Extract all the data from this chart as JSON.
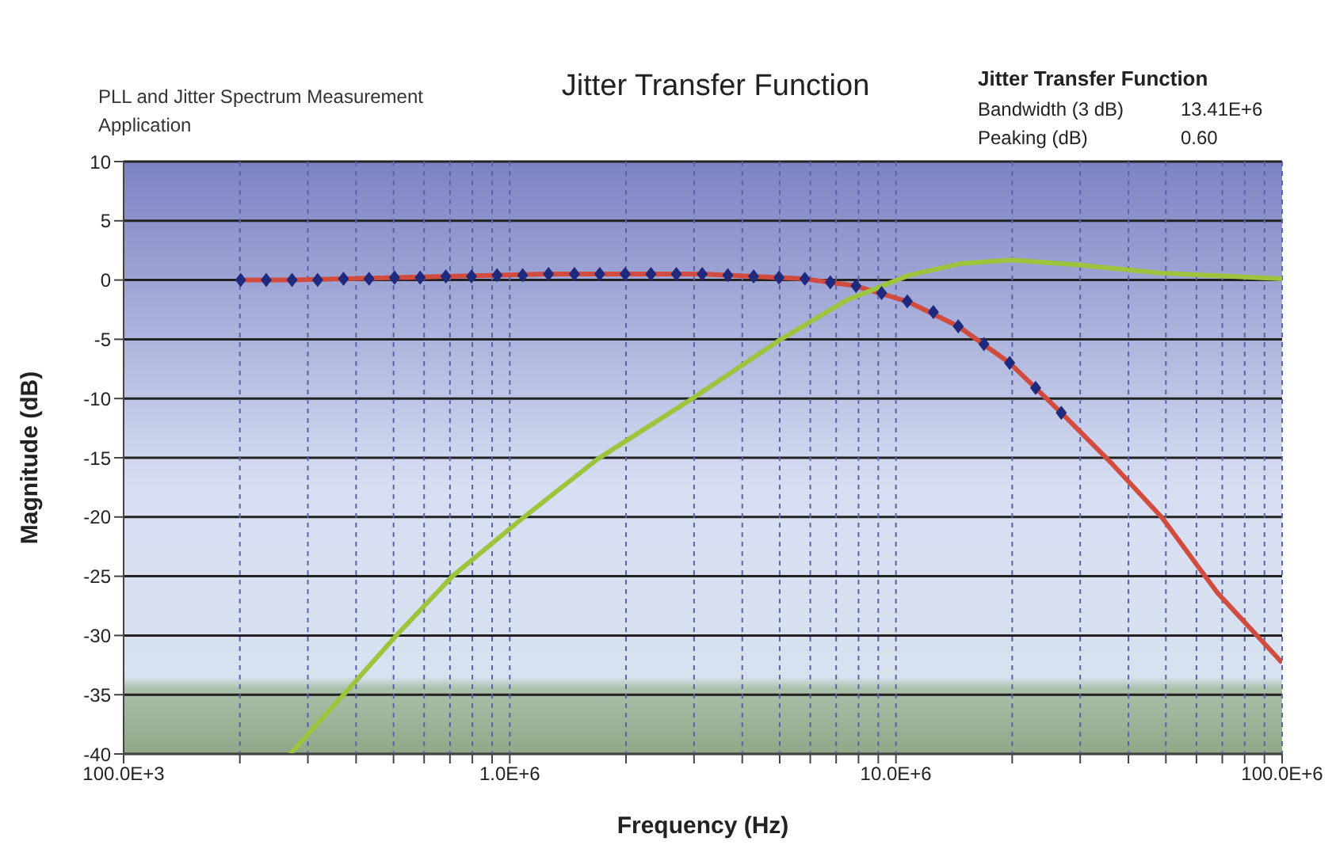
{
  "chart_data": {
    "type": "line",
    "title": "Jitter Transfer Function",
    "xlabel": "Frequency (Hz)",
    "ylabel": "Magnitude (dB)",
    "annotations": [
      "PLL and Jitter Spectrum Measurement Application",
      "Jitter Transfer Function",
      "Bandwidth (3 dB)",
      "13.41E+6",
      "Peaking (dB)",
      "0.60"
    ],
    "log": "x",
    "grid": true,
    "legend": false,
    "xlim": [
      100000,
      100000000
    ],
    "xticks": [
      {
        "value": 100000,
        "label": "100.0E+3"
      },
      {
        "value": 200000,
        "label": null
      },
      {
        "value": 300000,
        "label": null
      },
      {
        "value": 400000,
        "label": null
      },
      {
        "value": 500000,
        "label": null
      },
      {
        "value": 600000,
        "label": null
      },
      {
        "value": 700000,
        "label": null
      },
      {
        "value": 800000,
        "label": null
      },
      {
        "value": 900000,
        "label": null
      },
      {
        "value": 1000000,
        "label": "1.0E+6"
      },
      {
        "value": 2000000,
        "label": null
      },
      {
        "value": 3000000,
        "label": null
      },
      {
        "value": 4000000,
        "label": null
      },
      {
        "value": 5000000,
        "label": null
      },
      {
        "value": 6000000,
        "label": null
      },
      {
        "value": 7000000,
        "label": null
      },
      {
        "value": 8000000,
        "label": null
      },
      {
        "value": 9000000,
        "label": null
      },
      {
        "value": 10000000,
        "label": "10.0E+6"
      },
      {
        "value": 20000000,
        "label": null
      },
      {
        "value": 30000000,
        "label": null
      },
      {
        "value": 40000000,
        "label": null
      },
      {
        "value": 50000000,
        "label": null
      },
      {
        "value": 60000000,
        "label": null
      },
      {
        "value": 70000000,
        "label": null
      },
      {
        "value": 80000000,
        "label": null
      },
      {
        "value": 90000000,
        "label": null
      },
      {
        "value": 100000000,
        "label": "100.0E+6"
      }
    ],
    "ylim": [
      -40,
      10
    ],
    "yticks": [
      -40,
      -35,
      -30,
      -25,
      -20,
      -15,
      -10,
      -5,
      0,
      5,
      10
    ],
    "series": [
      {
        "color": "#d24b3f",
        "line_style": "solid",
        "marker": "none",
        "x": [
          201000,
          273000,
          371000,
          503000,
          683000,
          927000,
          1260000,
          1710000,
          2320000,
          3150000,
          4280000,
          5810000,
          7880000,
          10700000,
          14500000,
          19700000,
          26800000,
          36500000,
          49000000,
          68000000,
          100000000
        ],
        "values": [
          0,
          0,
          0.1,
          0.2,
          0.3,
          0.4,
          0.5,
          0.5,
          0.5,
          0.5,
          0.3,
          0.1,
          -0.5,
          -1.8,
          -3.9,
          -7.0,
          -11.2,
          -15.6,
          -20.1,
          -26.4,
          -32.3
        ]
      },
      {
        "type": "scatter",
        "color": "#1f2a7e",
        "marker": "diamond",
        "x": [
          201000,
          234000,
          273000,
          318000,
          371000,
          432000,
          503000,
          586000,
          683000,
          796000,
          927000,
          1080000,
          1260000,
          1470000,
          1710000,
          1990000,
          2320000,
          2700000,
          3150000,
          3670000,
          4280000,
          4980000,
          5810000,
          6760000,
          7880000,
          9180000,
          10700000,
          12500000,
          14500000,
          16900000,
          19700000,
          23000000,
          26800000
        ],
        "values": [
          0,
          0,
          0,
          0,
          0.1,
          0.1,
          0.2,
          0.2,
          0.3,
          0.3,
          0.4,
          0.4,
          0.5,
          0.5,
          0.5,
          0.5,
          0.5,
          0.5,
          0.5,
          0.4,
          0.3,
          0.2,
          0.1,
          -0.2,
          -0.5,
          -1.1,
          -1.8,
          -2.7,
          -3.9,
          -5.4,
          -7.0,
          -9.1,
          -11.2
        ]
      },
      {
        "color": "#9cc43c",
        "line_style": "solid",
        "marker": "none",
        "x": [
          270000,
          369000,
          505000,
          710000,
          1080000,
          1690000,
          2970000,
          4980000,
          7460000,
          10800000,
          14800000,
          19900000,
          29300000,
          48200000,
          100000000
        ],
        "values": [
          -40,
          -35.1,
          -30.1,
          -25.0,
          -20.1,
          -15.1,
          -10.0,
          -5.1,
          -1.7,
          0.4,
          1.4,
          1.7,
          1.3,
          0.6,
          0.1
        ]
      }
    ]
  }
}
